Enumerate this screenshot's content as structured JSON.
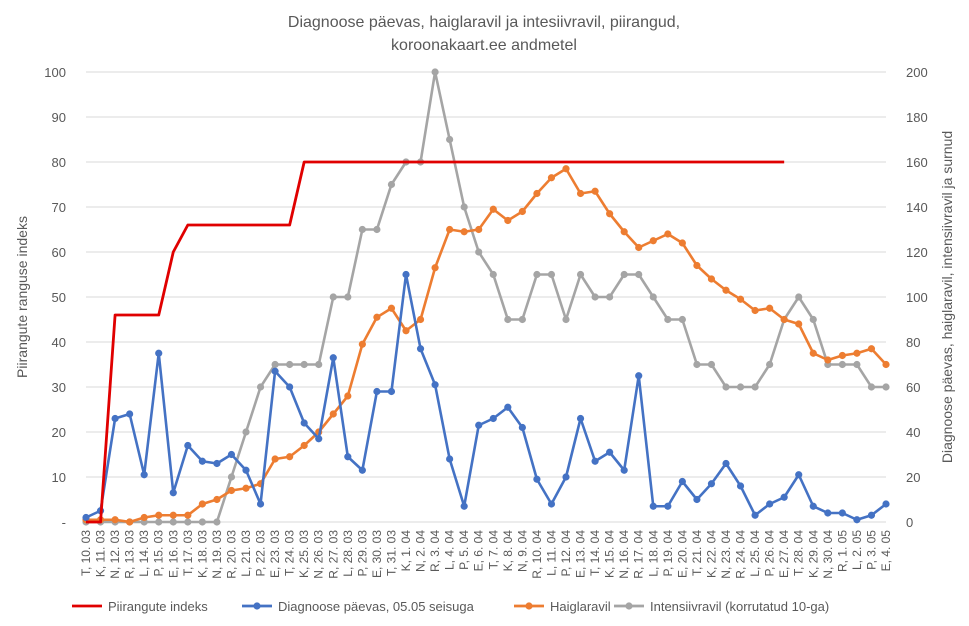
{
  "chart_data": {
    "type": "line",
    "title_lines": [
      "Diagnoose päevas, haiglaravil ja intesiivravil, piirangud,",
      "koroonakaart.ee andmetel"
    ],
    "ylabel_left": "Piirangute ranguse indeks",
    "ylabel_right": "Diagnoose päevas, haiglaravil, intensiivravil ja surnud",
    "ylim_left": [
      0,
      100
    ],
    "ylim_right": [
      0,
      200
    ],
    "yticks_left": [
      "-",
      "10",
      "20",
      "30",
      "40",
      "50",
      "60",
      "70",
      "80",
      "90",
      "100"
    ],
    "yticks_right": [
      "0",
      "20",
      "40",
      "60",
      "80",
      "100",
      "120",
      "140",
      "160",
      "180",
      "200"
    ],
    "grid": true,
    "legend_position": "bottom",
    "categories": [
      "T, 10. 03",
      "K, 11. 03",
      "N, 12. 03",
      "R, 13. 03",
      "L, 14. 03",
      "P, 15. 03",
      "E, 16. 03",
      "T, 17. 03",
      "K, 18. 03",
      "N, 19. 03",
      "R, 20. 03",
      "L, 21. 03",
      "P, 22. 03",
      "E, 23. 03",
      "T, 24. 03",
      "K, 25. 03",
      "N, 26. 03",
      "R, 27. 03",
      "L, 28. 03",
      "P, 29. 03",
      "E, 30. 03",
      "T, 31. 03",
      "K, 1. 04",
      "N, 2. 04",
      "R, 3. 04",
      "L, 4. 04",
      "P, 5. 04",
      "E, 6. 04",
      "T, 7. 04",
      "K, 8. 04",
      "N, 9. 04",
      "R, 10. 04",
      "L, 11. 04",
      "P, 12. 04",
      "E, 13. 04",
      "T, 14. 04",
      "K, 15. 04",
      "N, 16. 04",
      "R, 17. 04",
      "L, 18. 04",
      "P, 19. 04",
      "E, 20. 04",
      "T, 21. 04",
      "K, 22. 04",
      "N, 23. 04",
      "R, 24. 04",
      "L, 25. 04",
      "P, 26. 04",
      "E, 27. 04",
      "T, 28. 04",
      "K, 29. 04",
      "N, 30. 04",
      "R, 1. 05",
      "L, 2. 05",
      "P, 3. 05",
      "E, 4. 05"
    ],
    "series": [
      {
        "name": "Piirangute indeks",
        "axis": "left",
        "color": "#e00000",
        "markers": false,
        "values": [
          0,
          0,
          46,
          46,
          46,
          46,
          60,
          66,
          66,
          66,
          66,
          66,
          66,
          66,
          66,
          80,
          80,
          80,
          80,
          80,
          80,
          80,
          80,
          80,
          80,
          80,
          80,
          80,
          80,
          80,
          80,
          80,
          80,
          80,
          80,
          80,
          80,
          80,
          80,
          80,
          80,
          80,
          80,
          80,
          80,
          80,
          80,
          80,
          80,
          null,
          null,
          null,
          null,
          null,
          null,
          null
        ]
      },
      {
        "name": "Diagnoose päevas, 05.05 seisuga",
        "axis": "right",
        "color": "#4472c4",
        "markers": true,
        "values": [
          2,
          5,
          46,
          48,
          21,
          75,
          13,
          34,
          27,
          26,
          30,
          23,
          8,
          67,
          60,
          44,
          37,
          73,
          29,
          23,
          58,
          58,
          110,
          77,
          61,
          28,
          7,
          43,
          46,
          51,
          42,
          19,
          8,
          20,
          46,
          27,
          31,
          23,
          65,
          7,
          7,
          18,
          10,
          17,
          26,
          16,
          3,
          8,
          11,
          21,
          7,
          4,
          4,
          1,
          3,
          8
        ]
      },
      {
        "name": "Haiglaravil",
        "axis": "right",
        "color": "#ed7d31",
        "markers": true,
        "values": [
          1,
          1,
          1,
          0,
          2,
          3,
          3,
          3,
          8,
          10,
          14,
          15,
          17,
          28,
          29,
          34,
          40,
          48,
          56,
          79,
          91,
          95,
          85,
          90,
          113,
          130,
          129,
          130,
          139,
          134,
          138,
          146,
          153,
          157,
          146,
          147,
          137,
          129,
          122,
          125,
          128,
          124,
          114,
          108,
          103,
          99,
          94,
          95,
          90,
          88,
          75,
          72,
          74,
          75,
          77,
          70
        ]
      },
      {
        "name": "Intensiivravil  (korrutatud 10-ga)",
        "axis": "right",
        "color": "#a5a5a5",
        "markers": true,
        "values": [
          0,
          0,
          0,
          0,
          0,
          0,
          0,
          0,
          0,
          0,
          20,
          40,
          60,
          70,
          70,
          70,
          70,
          100,
          100,
          130,
          130,
          150,
          160,
          160,
          200,
          170,
          140,
          120,
          110,
          90,
          90,
          110,
          110,
          90,
          110,
          100,
          100,
          110,
          110,
          100,
          90,
          90,
          70,
          70,
          60,
          60,
          60,
          70,
          90,
          100,
          90,
          70,
          70,
          70,
          60,
          60
        ]
      }
    ]
  }
}
